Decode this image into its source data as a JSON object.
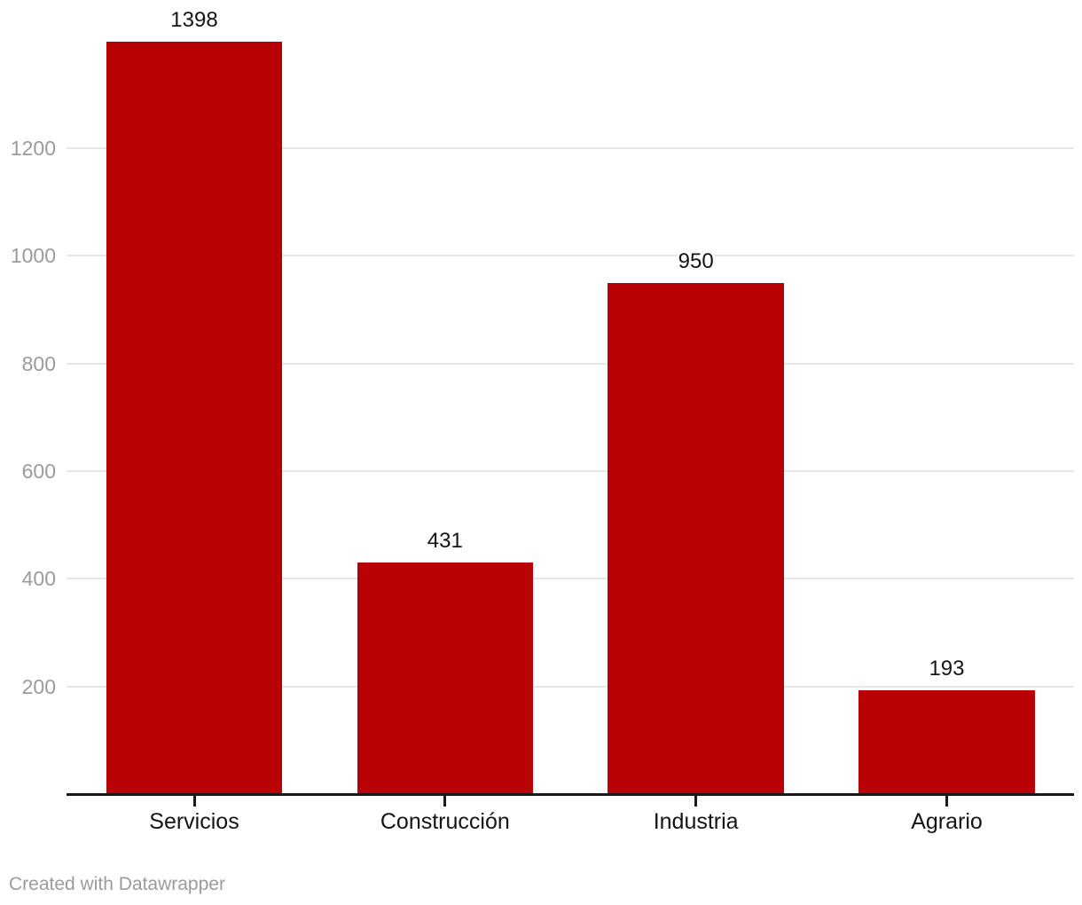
{
  "chart_data": {
    "type": "bar",
    "categories": [
      "Servicios",
      "Construcción",
      "Industria",
      "Agrario"
    ],
    "values": [
      1398,
      431,
      950,
      193
    ],
    "value_labels": [
      "1398",
      "431",
      "950",
      "193"
    ],
    "title": "",
    "xlabel": "",
    "ylabel": "",
    "ylim": [
      0,
      1400
    ],
    "y_ticks": [
      200,
      400,
      600,
      800,
      1000,
      1200
    ],
    "grid": "horizontal",
    "legend": "none",
    "bar_color": "#b80205"
  },
  "colors": {
    "background": "#ffffff",
    "bar": "#b80205",
    "gridline": "#e6e6e6",
    "axis_line": "#18181a",
    "tick_mark": "#1a1a1a",
    "y_label": "#9b9b9b",
    "value_label": "#141414",
    "category_label": "#141414",
    "footer": "#9b9b9b"
  },
  "footer": {
    "text": "Created with Datawrapper"
  }
}
